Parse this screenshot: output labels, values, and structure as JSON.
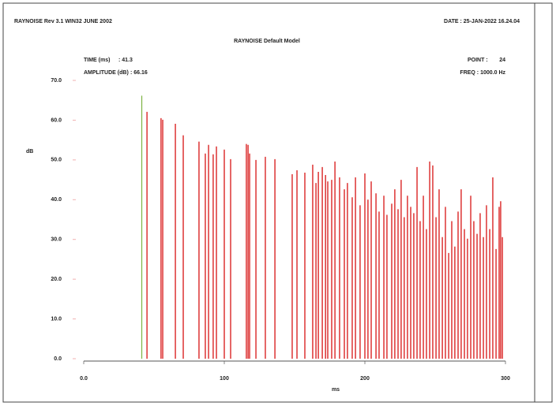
{
  "header": {
    "program": "RAYNOISE Rev 3.1   WIN32   JUNE 2002",
    "date": "DATE : 25-JAN-2022 16.24.04",
    "model": "RAYNOISE Default Model",
    "time_label": "TIME (ms)",
    "time_value": ": 41.3",
    "amplitude_label": "AMPLITUDE (dB)",
    "amplitude_value": ": 66.16",
    "point_label": "POINT :",
    "point_value": "24",
    "freq": "FREQ : 1000.0 Hz"
  },
  "chart_data": {
    "type": "stem",
    "y_label": "dB",
    "x_label": "ms",
    "xlim": [
      0,
      300
    ],
    "xticks": [
      {
        "value": 0,
        "label": "0.0"
      },
      100,
      200,
      300
    ],
    "ylim": [
      0,
      70
    ],
    "yticks": [
      {
        "value": 0,
        "label": "0.0"
      },
      {
        "value": 10,
        "label": "10.0"
      },
      {
        "value": 20,
        "label": "20.0"
      },
      {
        "value": 30,
        "label": "30.0"
      },
      {
        "value": 40,
        "label": "40.0"
      },
      {
        "value": 50,
        "label": "50.0"
      },
      {
        "value": 60,
        "label": "60.0"
      },
      {
        "value": 70,
        "label": "70.0"
      }
    ],
    "series": [
      {
        "color": "#7cb342",
        "x": [
          41.3
        ],
        "values": [
          66.16
        ]
      },
      {
        "color": "#d40000",
        "x": [
          45,
          55,
          56.2,
          65.2,
          70.8,
          82,
          86.5,
          88.8,
          92.1,
          94.4,
          100,
          104.5,
          115.7,
          116.9,
          118,
          122.5,
          129.2,
          136,
          148.3,
          151.7,
          157.3,
          162.9,
          165.2,
          166.9,
          169.7,
          172,
          173.6,
          176.4,
          178.7,
          182,
          185.4,
          187.6,
          191,
          193.3,
          196.6,
          200,
          202.2,
          204.5,
          207.9,
          210.1,
          213.5,
          215.7,
          219.1,
          221.3,
          223.6,
          225.8,
          228,
          230.3,
          232.6,
          234.8,
          237.1,
          239.3,
          241.6,
          243.8,
          246.1,
          248.3,
          250.6,
          252.8,
          255.1,
          257.3,
          259.6,
          261.8,
          264,
          266.3,
          268.5,
          270.8,
          273,
          275.3,
          277.5,
          279.8,
          282,
          284.3,
          286.5,
          288.8,
          291,
          293.3,
          295.5,
          296.6,
          297.8
        ],
        "values": [
          62.1,
          60.5,
          60.1,
          59.1,
          56.2,
          54.6,
          51.6,
          53.8,
          51.4,
          53.4,
          52.6,
          50.2,
          54.0,
          53.8,
          51.6,
          50,
          50.8,
          50.2,
          46.4,
          47.4,
          46.8,
          48.8,
          44.2,
          47,
          48.2,
          46.2,
          44.6,
          45,
          49.6,
          45.6,
          42.6,
          44.2,
          40.6,
          45.6,
          38.6,
          46.6,
          40,
          44.6,
          41.6,
          37,
          41,
          36.2,
          39,
          42.6,
          37.6,
          45,
          35.6,
          41,
          38.2,
          36.6,
          48.2,
          34.6,
          41,
          32.6,
          49.6,
          48.6,
          35.6,
          42.6,
          30.6,
          38.2,
          26.6,
          34.6,
          28.2,
          37,
          42.6,
          32.6,
          30.2,
          41,
          34.6,
          31.4,
          36.6,
          30.6,
          38.6,
          32.6,
          45.6,
          27.6,
          38.2,
          39.6,
          30.6
        ]
      }
    ]
  }
}
